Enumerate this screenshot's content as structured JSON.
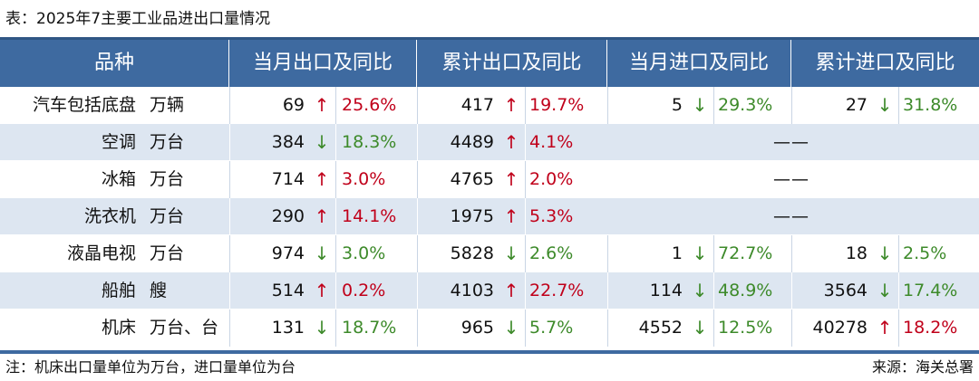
{
  "title": "表：2025年7主要工业品进出口量情况",
  "headers": [
    "品种",
    "当月出口及同比",
    "累计出口及同比",
    "当月进口及同比",
    "累计进口及同比"
  ],
  "rows": [
    {
      "name": "汽车包括底盘",
      "unit": "万辆",
      "m_exp": "69",
      "m_exp_dir": "↑",
      "m_exp_pct": "25.6%",
      "c_exp": "417",
      "c_exp_dir": "↑",
      "c_exp_pct": "19.7%",
      "m_imp": "5",
      "m_imp_dir": "↓",
      "m_imp_pct": "29.3%",
      "c_imp": "27",
      "c_imp_dir": "↓",
      "c_imp_pct": "31.8%"
    },
    {
      "name": "空调",
      "unit": "万台",
      "m_exp": "384",
      "m_exp_dir": "↓",
      "m_exp_pct": "18.3%",
      "c_exp": "4489",
      "c_exp_dir": "↑",
      "c_exp_pct": "4.1%",
      "import_placeholder": "——"
    },
    {
      "name": "冰箱",
      "unit": "万台",
      "m_exp": "714",
      "m_exp_dir": "↑",
      "m_exp_pct": "3.0%",
      "c_exp": "4765",
      "c_exp_dir": "↑",
      "c_exp_pct": "2.0%",
      "import_placeholder": "——"
    },
    {
      "name": "洗衣机",
      "unit": "万台",
      "m_exp": "290",
      "m_exp_dir": "↑",
      "m_exp_pct": "14.1%",
      "c_exp": "1975",
      "c_exp_dir": "↑",
      "c_exp_pct": "5.3%",
      "import_placeholder": "——"
    },
    {
      "name": "液晶电视",
      "unit": "万台",
      "m_exp": "974",
      "m_exp_dir": "↓",
      "m_exp_pct": "3.0%",
      "c_exp": "5828",
      "c_exp_dir": "↓",
      "c_exp_pct": "2.6%",
      "m_imp": "1",
      "m_imp_dir": "↓",
      "m_imp_pct": "72.7%",
      "c_imp": "18",
      "c_imp_dir": "↓",
      "c_imp_pct": "2.5%"
    },
    {
      "name": "船舶",
      "unit": "艘",
      "m_exp": "514",
      "m_exp_dir": "↑",
      "m_exp_pct": "0.2%",
      "c_exp": "4103",
      "c_exp_dir": "↑",
      "c_exp_pct": "22.7%",
      "m_imp": "114",
      "m_imp_dir": "↓",
      "m_imp_pct": "48.9%",
      "c_imp": "3564",
      "c_imp_dir": "↓",
      "c_imp_pct": "17.4%"
    },
    {
      "name": "机床",
      "unit": "万台、台",
      "m_exp": "131",
      "m_exp_dir": "↓",
      "m_exp_pct": "18.7%",
      "c_exp": "965",
      "c_exp_dir": "↓",
      "c_exp_pct": "5.7%",
      "m_imp": "4552",
      "m_imp_dir": "↓",
      "m_imp_pct": "12.5%",
      "c_imp": "40278",
      "c_imp_dir": "↑",
      "c_imp_pct": "18.2%"
    }
  ],
  "note": "注：机床出口量单位为万台，进口量单位为台",
  "source": "来源：海关总署",
  "colors": {
    "header_bg": "#3e6aa0",
    "alt_row": "#dde6f1",
    "up": "#c0001a",
    "down": "#3d8a2a"
  }
}
